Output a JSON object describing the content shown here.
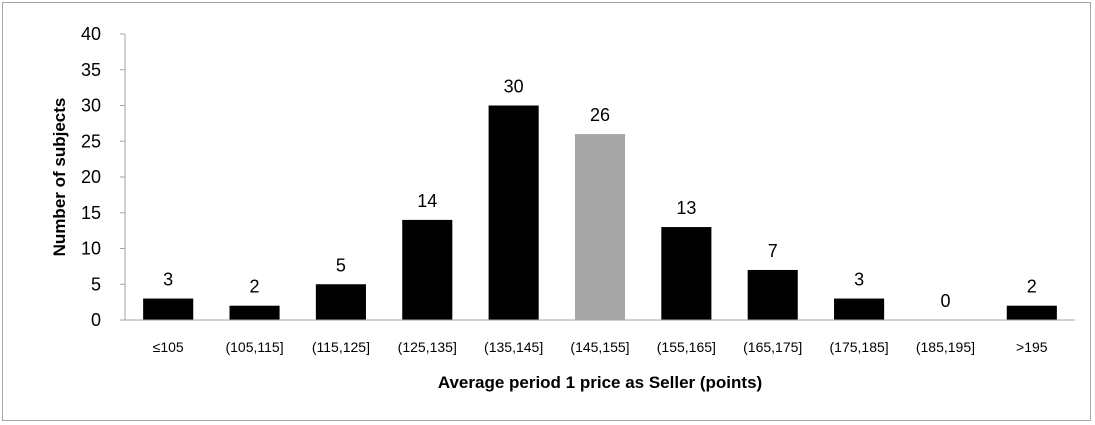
{
  "chart_data": {
    "type": "bar",
    "title": "",
    "xlabel": "Average period 1 price as Seller (points)",
    "ylabel": "Number of subjects",
    "categories": [
      "≤105",
      "(105,115]",
      "(115,125]",
      "(125,135]",
      "(135,145]",
      "(145,155]",
      "(155,165]",
      "(165,175]",
      "(175,185]",
      "(185,195]",
      ">195"
    ],
    "values": [
      3,
      2,
      5,
      14,
      30,
      26,
      13,
      7,
      3,
      0,
      2
    ],
    "data_labels": [
      "3",
      "2",
      "5",
      "14",
      "30",
      "26",
      "13",
      "7",
      "3",
      "0",
      "2"
    ],
    "bar_colors": [
      "#000000",
      "#000000",
      "#000000",
      "#000000",
      "#000000",
      "#a6a6a6",
      "#000000",
      "#000000",
      "#000000",
      "#000000",
      "#000000"
    ],
    "yticks": [
      "0",
      "5",
      "10",
      "15",
      "20",
      "25",
      "30",
      "35",
      "40"
    ],
    "ylim": [
      0,
      40
    ],
    "grid": false,
    "legend": "none"
  }
}
